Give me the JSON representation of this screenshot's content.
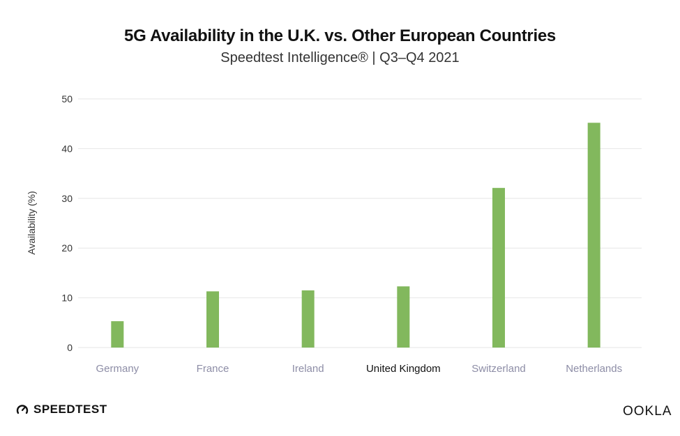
{
  "chart_data": {
    "type": "bar",
    "title": "5G Availability in the U.K. vs. Other European Countries",
    "subtitle": "Speedtest Intelligence® | Q3–Q4 2021",
    "xlabel": "",
    "ylabel": "Availability (%)",
    "ylim": [
      0,
      50
    ],
    "yticks": [
      0,
      10,
      20,
      30,
      40,
      50
    ],
    "categories": [
      "Germany",
      "France",
      "Ireland",
      "United Kingdom",
      "Switzerland",
      "Netherlands"
    ],
    "highlight_category": "United Kingdom",
    "values": [
      5.3,
      11.3,
      11.5,
      12.3,
      32.1,
      45.2
    ],
    "grid": true,
    "colors": {
      "bar": "#82b85d",
      "grid": "#e6e6e6",
      "tick_label": "#8d8da6",
      "highlight_label": "#111111",
      "axis_text": "#333333"
    }
  },
  "branding": {
    "left_logo": "SPEEDTEST",
    "left_icon": "speedometer-icon",
    "right_logo": "OOKLA"
  }
}
